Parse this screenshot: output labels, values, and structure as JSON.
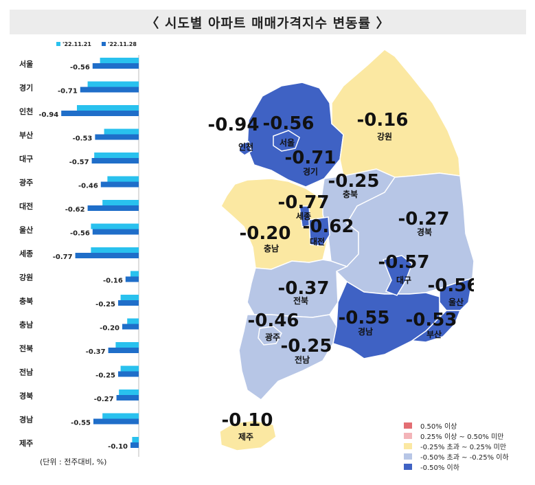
{
  "title": "〈 시도별 아파트 매매가격지수 변동률 〉",
  "unit_note": "(단위 : 전주대비, %)",
  "colors": {
    "series1": "#29c1ee",
    "series2": "#1f6ec9",
    "map_blue_dark": "#3f62c4",
    "map_blue_light": "#b7c6e6",
    "map_yellow": "#fbe8a2",
    "map_pink": "#f3b4b8",
    "map_red": "#e36e73"
  },
  "chart_data": {
    "type": "bar",
    "orientation": "horizontal",
    "legend_position": "top",
    "series": [
      {
        "name": "'22.11.21",
        "values": [
          -0.47,
          -0.62,
          -0.75,
          -0.42,
          -0.54,
          -0.38,
          -0.44,
          -0.58,
          -0.58,
          -0.1,
          -0.22,
          -0.14,
          -0.28,
          -0.22,
          -0.24,
          -0.44,
          -0.08
        ]
      },
      {
        "name": "'22.11.28",
        "values": [
          -0.56,
          -0.71,
          -0.94,
          -0.53,
          -0.57,
          -0.46,
          -0.62,
          -0.56,
          -0.77,
          -0.16,
          -0.25,
          -0.2,
          -0.37,
          -0.25,
          -0.27,
          -0.55,
          -0.1
        ]
      }
    ],
    "categories": [
      "서울",
      "경기",
      "인천",
      "부산",
      "대구",
      "광주",
      "대전",
      "울산",
      "세종",
      "강원",
      "충북",
      "충남",
      "전북",
      "전남",
      "경북",
      "경남",
      "제주"
    ],
    "value_labels": [
      "-0.56",
      "-0.71",
      "-0.94",
      "-0.53",
      "-0.57",
      "-0.46",
      "-0.62",
      "-0.56",
      "-0.77",
      "-0.16",
      "-0.25",
      "-0.20",
      "-0.37",
      "-0.25",
      "-0.27",
      "-0.55",
      "-0.10"
    ]
  },
  "map": {
    "regions": [
      {
        "name": "서울",
        "value": "-0.56",
        "class": "dark"
      },
      {
        "name": "인천",
        "value": "-0.94",
        "class": "dark"
      },
      {
        "name": "경기",
        "value": "-0.71",
        "class": "dark"
      },
      {
        "name": "강원",
        "value": "-0.16",
        "class": "yellow"
      },
      {
        "name": "충북",
        "value": "-0.25",
        "class": "light"
      },
      {
        "name": "세종",
        "value": "-0.77",
        "class": "dark"
      },
      {
        "name": "충남",
        "value": "-0.20",
        "class": "yellow"
      },
      {
        "name": "대전",
        "value": "-0.62",
        "class": "dark"
      },
      {
        "name": "경북",
        "value": "-0.27",
        "class": "light"
      },
      {
        "name": "대구",
        "value": "-0.57",
        "class": "dark"
      },
      {
        "name": "울산",
        "value": "-0.56",
        "class": "dark"
      },
      {
        "name": "전북",
        "value": "-0.37",
        "class": "light"
      },
      {
        "name": "광주",
        "value": "-0.46",
        "class": "light"
      },
      {
        "name": "전남",
        "value": "-0.25",
        "class": "light"
      },
      {
        "name": "경남",
        "value": "-0.55",
        "class": "dark"
      },
      {
        "name": "부산",
        "value": "-0.53",
        "class": "dark"
      },
      {
        "name": "제주",
        "value": "-0.10",
        "class": "yellow"
      }
    ]
  },
  "legend": [
    {
      "label": "0.50% 이상",
      "class": "red"
    },
    {
      "label": "0.25% 이상 ~ 0.50% 미만",
      "class": "pink"
    },
    {
      "label": "-0.25% 초과 ~ 0.25% 미만",
      "class": "yellow"
    },
    {
      "label": "-0.50% 초과 ~ -0.25% 이하",
      "class": "light"
    },
    {
      "label": "-0.50% 이하",
      "class": "dark"
    }
  ]
}
